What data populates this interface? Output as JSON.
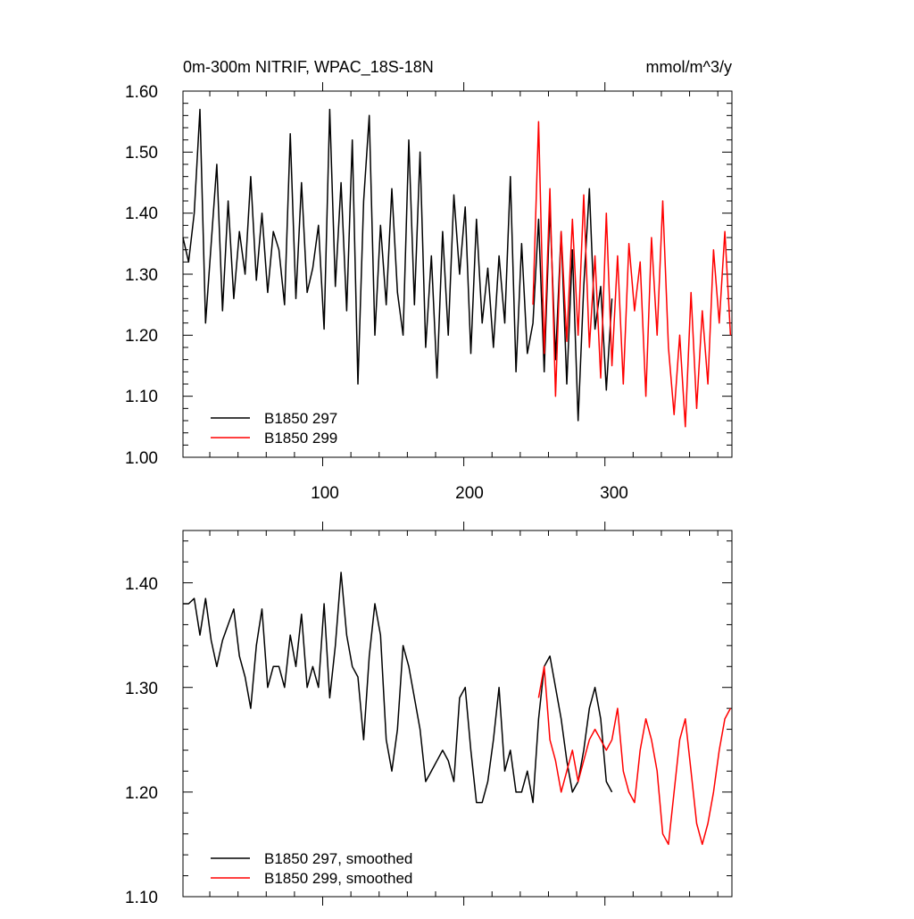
{
  "chart_data": [
    {
      "type": "line",
      "title": "0m-300m NITRIF, WPAC_18S-18N",
      "units": "mmol/m^3/y",
      "xlim": [
        1,
        390
      ],
      "ylim": [
        1.0,
        1.6
      ],
      "xticks": [
        100,
        200,
        300
      ],
      "xtick_labels": [
        "100",
        "200",
        "300"
      ],
      "yticks": [
        1.0,
        1.1,
        1.2,
        1.3,
        1.4,
        1.5,
        1.6
      ],
      "ytick_labels": [
        "1.00",
        "1.10",
        "1.20",
        "1.30",
        "1.40",
        "1.50",
        "1.60"
      ],
      "legend_position": "bottom-left",
      "series": [
        {
          "name": "B1850 297",
          "color": "#000000",
          "x": [
            1,
            5,
            9,
            13,
            17,
            21,
            25,
            29,
            33,
            37,
            41,
            45,
            49,
            53,
            57,
            61,
            65,
            69,
            73,
            77,
            81,
            85,
            89,
            93,
            97,
            101,
            105,
            109,
            113,
            117,
            121,
            125,
            129,
            133,
            137,
            141,
            145,
            149,
            153,
            157,
            161,
            165,
            169,
            173,
            177,
            181,
            185,
            189,
            193,
            197,
            201,
            205,
            209,
            213,
            217,
            221,
            225,
            229,
            233,
            237,
            241,
            245,
            249,
            253,
            257,
            261,
            265,
            269,
            273,
            277,
            281,
            285,
            289,
            293,
            297,
            301,
            305
          ],
          "values": [
            1.36,
            1.32,
            1.4,
            1.57,
            1.22,
            1.35,
            1.48,
            1.24,
            1.42,
            1.26,
            1.37,
            1.3,
            1.46,
            1.29,
            1.4,
            1.27,
            1.37,
            1.34,
            1.25,
            1.53,
            1.26,
            1.45,
            1.27,
            1.31,
            1.38,
            1.21,
            1.57,
            1.28,
            1.45,
            1.24,
            1.52,
            1.12,
            1.42,
            1.56,
            1.2,
            1.38,
            1.25,
            1.44,
            1.27,
            1.2,
            1.52,
            1.25,
            1.5,
            1.18,
            1.33,
            1.13,
            1.37,
            1.2,
            1.43,
            1.3,
            1.41,
            1.17,
            1.39,
            1.22,
            1.31,
            1.18,
            1.33,
            1.22,
            1.46,
            1.14,
            1.35,
            1.17,
            1.22,
            1.39,
            1.14,
            1.41,
            1.16,
            1.37,
            1.12,
            1.34,
            1.06,
            1.28,
            1.44,
            1.21,
            1.28,
            1.11,
            1.26
          ]
        },
        {
          "name": "B1850 299",
          "color": "#ff0000",
          "x": [
            249,
            253,
            257,
            261,
            265,
            269,
            273,
            277,
            281,
            285,
            289,
            293,
            297,
            301,
            305,
            309,
            313,
            317,
            321,
            325,
            329,
            333,
            337,
            341,
            345,
            349,
            353,
            357,
            361,
            365,
            369,
            373,
            377,
            381,
            385,
            389
          ],
          "values": [
            1.25,
            1.55,
            1.17,
            1.44,
            1.1,
            1.37,
            1.19,
            1.39,
            1.2,
            1.43,
            1.18,
            1.33,
            1.13,
            1.4,
            1.15,
            1.33,
            1.12,
            1.35,
            1.24,
            1.32,
            1.1,
            1.36,
            1.2,
            1.42,
            1.18,
            1.07,
            1.2,
            1.05,
            1.27,
            1.08,
            1.24,
            1.12,
            1.34,
            1.22,
            1.37,
            1.2
          ]
        }
      ]
    },
    {
      "type": "line",
      "title": "",
      "xlim": [
        1,
        390
      ],
      "ylim": [
        1.1,
        1.45
      ],
      "xticks": [
        100,
        200,
        300
      ],
      "yticks": [
        1.1,
        1.2,
        1.3,
        1.4
      ],
      "ytick_labels": [
        "1.10",
        "1.20",
        "1.30",
        "1.40"
      ],
      "legend_position": "bottom-left",
      "series": [
        {
          "name": "B1850 297, smoothed",
          "color": "#000000",
          "x": [
            1,
            5,
            9,
            13,
            17,
            21,
            25,
            29,
            33,
            37,
            41,
            45,
            49,
            53,
            57,
            61,
            65,
            69,
            73,
            77,
            81,
            85,
            89,
            93,
            97,
            101,
            105,
            109,
            113,
            117,
            121,
            125,
            129,
            133,
            137,
            141,
            145,
            149,
            153,
            157,
            161,
            165,
            169,
            173,
            177,
            181,
            185,
            189,
            193,
            197,
            201,
            205,
            209,
            213,
            217,
            221,
            225,
            229,
            233,
            237,
            241,
            245,
            249,
            253,
            257,
            261,
            265,
            269,
            273,
            277,
            281,
            285,
            289,
            293,
            297,
            301,
            305
          ],
          "values": [
            1.38,
            1.38,
            1.385,
            1.35,
            1.385,
            1.345,
            1.32,
            1.345,
            1.36,
            1.375,
            1.33,
            1.31,
            1.28,
            1.34,
            1.375,
            1.3,
            1.32,
            1.32,
            1.3,
            1.35,
            1.32,
            1.37,
            1.3,
            1.32,
            1.3,
            1.38,
            1.29,
            1.34,
            1.41,
            1.35,
            1.32,
            1.31,
            1.25,
            1.33,
            1.38,
            1.35,
            1.25,
            1.22,
            1.26,
            1.34,
            1.32,
            1.29,
            1.26,
            1.21,
            1.22,
            1.23,
            1.24,
            1.23,
            1.21,
            1.29,
            1.3,
            1.24,
            1.19,
            1.19,
            1.21,
            1.25,
            1.3,
            1.22,
            1.24,
            1.2,
            1.2,
            1.22,
            1.19,
            1.27,
            1.32,
            1.33,
            1.3,
            1.27,
            1.23,
            1.2,
            1.21,
            1.24,
            1.28,
            1.3,
            1.27,
            1.21,
            1.2
          ]
        },
        {
          "name": "B1850 299, smoothed",
          "color": "#ff0000",
          "x": [
            253,
            257,
            261,
            265,
            269,
            273,
            277,
            281,
            285,
            289,
            293,
            297,
            301,
            305,
            309,
            313,
            317,
            321,
            325,
            329,
            333,
            337,
            341,
            345,
            349,
            353,
            357,
            361,
            365,
            369,
            373,
            377,
            381,
            385,
            389
          ],
          "values": [
            1.29,
            1.32,
            1.25,
            1.23,
            1.2,
            1.22,
            1.24,
            1.21,
            1.23,
            1.25,
            1.26,
            1.25,
            1.24,
            1.25,
            1.28,
            1.22,
            1.2,
            1.19,
            1.24,
            1.27,
            1.25,
            1.22,
            1.16,
            1.15,
            1.2,
            1.25,
            1.27,
            1.22,
            1.17,
            1.15,
            1.17,
            1.2,
            1.24,
            1.27,
            1.28
          ]
        }
      ]
    }
  ]
}
